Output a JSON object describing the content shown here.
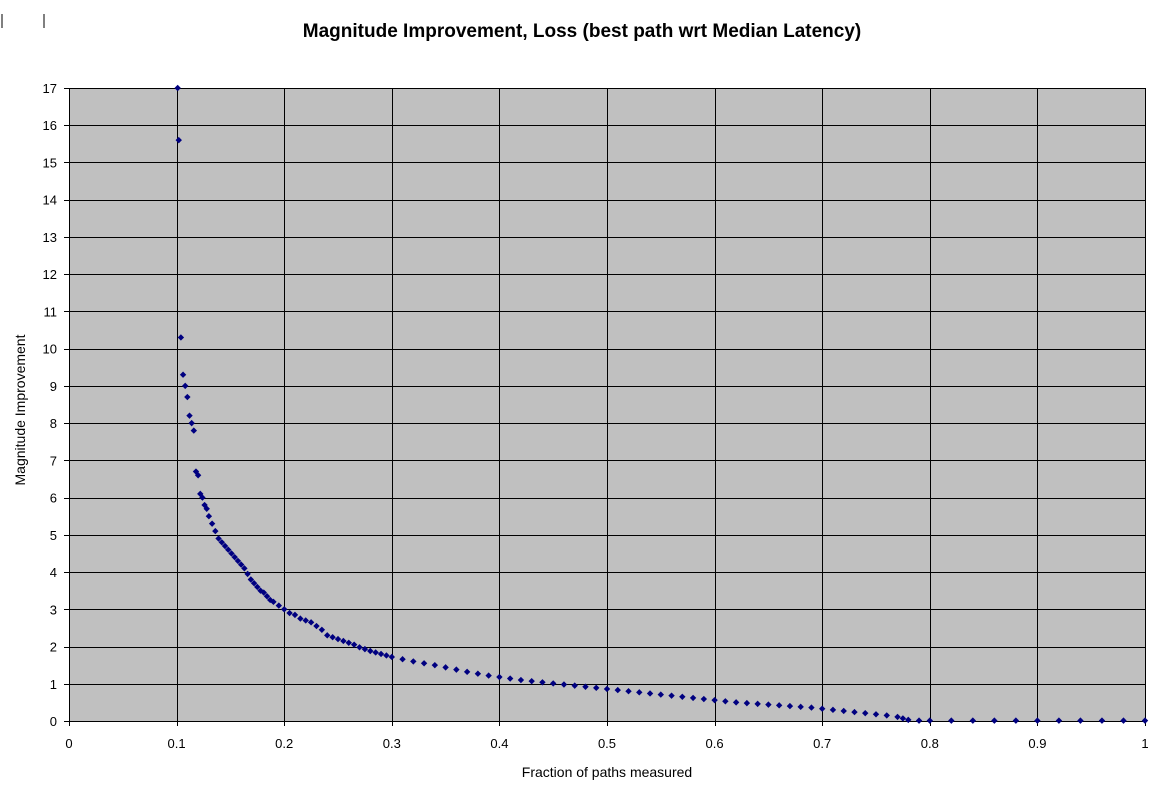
{
  "chart_data": {
    "type": "scatter",
    "title": "Magnitude Improvement, Loss (best path wrt Median Latency)",
    "xlabel": "Fraction of paths measured",
    "ylabel": "Magnitude Improvement",
    "xlim": [
      0,
      1
    ],
    "ylim": [
      0,
      17
    ],
    "x_ticks": [
      "0",
      "0.1",
      "0.2",
      "0.3",
      "0.4",
      "0.5",
      "0.6",
      "0.7",
      "0.8",
      "0.9",
      "1"
    ],
    "y_ticks": [
      "0",
      "1",
      "2",
      "3",
      "4",
      "5",
      "6",
      "7",
      "8",
      "9",
      "10",
      "11",
      "12",
      "13",
      "14",
      "15",
      "16",
      "17"
    ],
    "grid": true,
    "legend": "none",
    "colors": {
      "plot_background": "#c0c0c0",
      "marker": "#000080",
      "grid": "#000000"
    },
    "series": [
      {
        "marker": "diamond",
        "x": [
          0.101,
          0.102,
          0.104,
          0.106,
          0.108,
          0.11,
          0.112,
          0.114,
          0.116,
          0.118,
          0.12,
          0.122,
          0.124,
          0.126,
          0.128,
          0.13,
          0.133,
          0.136,
          0.139,
          0.142,
          0.145,
          0.148,
          0.151,
          0.154,
          0.157,
          0.16,
          0.163,
          0.166,
          0.169,
          0.172,
          0.175,
          0.178,
          0.181,
          0.184,
          0.187,
          0.19,
          0.195,
          0.2,
          0.205,
          0.21,
          0.215,
          0.22,
          0.225,
          0.23,
          0.235,
          0.24,
          0.245,
          0.25,
          0.255,
          0.26,
          0.265,
          0.27,
          0.275,
          0.28,
          0.285,
          0.29,
          0.295,
          0.3,
          0.31,
          0.32,
          0.33,
          0.34,
          0.35,
          0.36,
          0.37,
          0.38,
          0.39,
          0.4,
          0.41,
          0.42,
          0.43,
          0.44,
          0.45,
          0.46,
          0.47,
          0.48,
          0.49,
          0.5,
          0.51,
          0.52,
          0.53,
          0.54,
          0.55,
          0.56,
          0.57,
          0.58,
          0.59,
          0.6,
          0.61,
          0.62,
          0.63,
          0.64,
          0.65,
          0.66,
          0.67,
          0.68,
          0.69,
          0.7,
          0.71,
          0.72,
          0.73,
          0.74,
          0.75,
          0.76,
          0.77,
          0.775,
          0.78,
          0.79,
          0.8,
          0.82,
          0.84,
          0.86,
          0.88,
          0.9,
          0.92,
          0.94,
          0.96,
          0.98,
          1.0
        ],
        "y": [
          17.0,
          15.6,
          10.3,
          9.3,
          9.0,
          8.7,
          8.2,
          8.0,
          7.8,
          6.7,
          6.6,
          6.1,
          6.0,
          5.8,
          5.7,
          5.5,
          5.3,
          5.1,
          4.9,
          4.8,
          4.7,
          4.6,
          4.5,
          4.4,
          4.3,
          4.2,
          4.1,
          3.95,
          3.8,
          3.7,
          3.6,
          3.5,
          3.45,
          3.35,
          3.25,
          3.2,
          3.1,
          3.0,
          2.9,
          2.85,
          2.75,
          2.7,
          2.65,
          2.55,
          2.45,
          2.3,
          2.25,
          2.2,
          2.15,
          2.1,
          2.05,
          1.98,
          1.93,
          1.88,
          1.84,
          1.8,
          1.76,
          1.72,
          1.66,
          1.6,
          1.55,
          1.5,
          1.44,
          1.38,
          1.32,
          1.27,
          1.22,
          1.18,
          1.14,
          1.1,
          1.07,
          1.04,
          1.01,
          0.98,
          0.95,
          0.92,
          0.89,
          0.86,
          0.83,
          0.8,
          0.77,
          0.74,
          0.71,
          0.68,
          0.65,
          0.62,
          0.59,
          0.56,
          0.53,
          0.5,
          0.48,
          0.46,
          0.44,
          0.42,
          0.4,
          0.38,
          0.36,
          0.33,
          0.3,
          0.27,
          0.24,
          0.21,
          0.18,
          0.15,
          0.11,
          0.07,
          0.03,
          0.01,
          0.01,
          0.01,
          0.01,
          0.01,
          0.01,
          0.01,
          0.01,
          0.01,
          0.01,
          0.01,
          0.01
        ]
      }
    ]
  }
}
